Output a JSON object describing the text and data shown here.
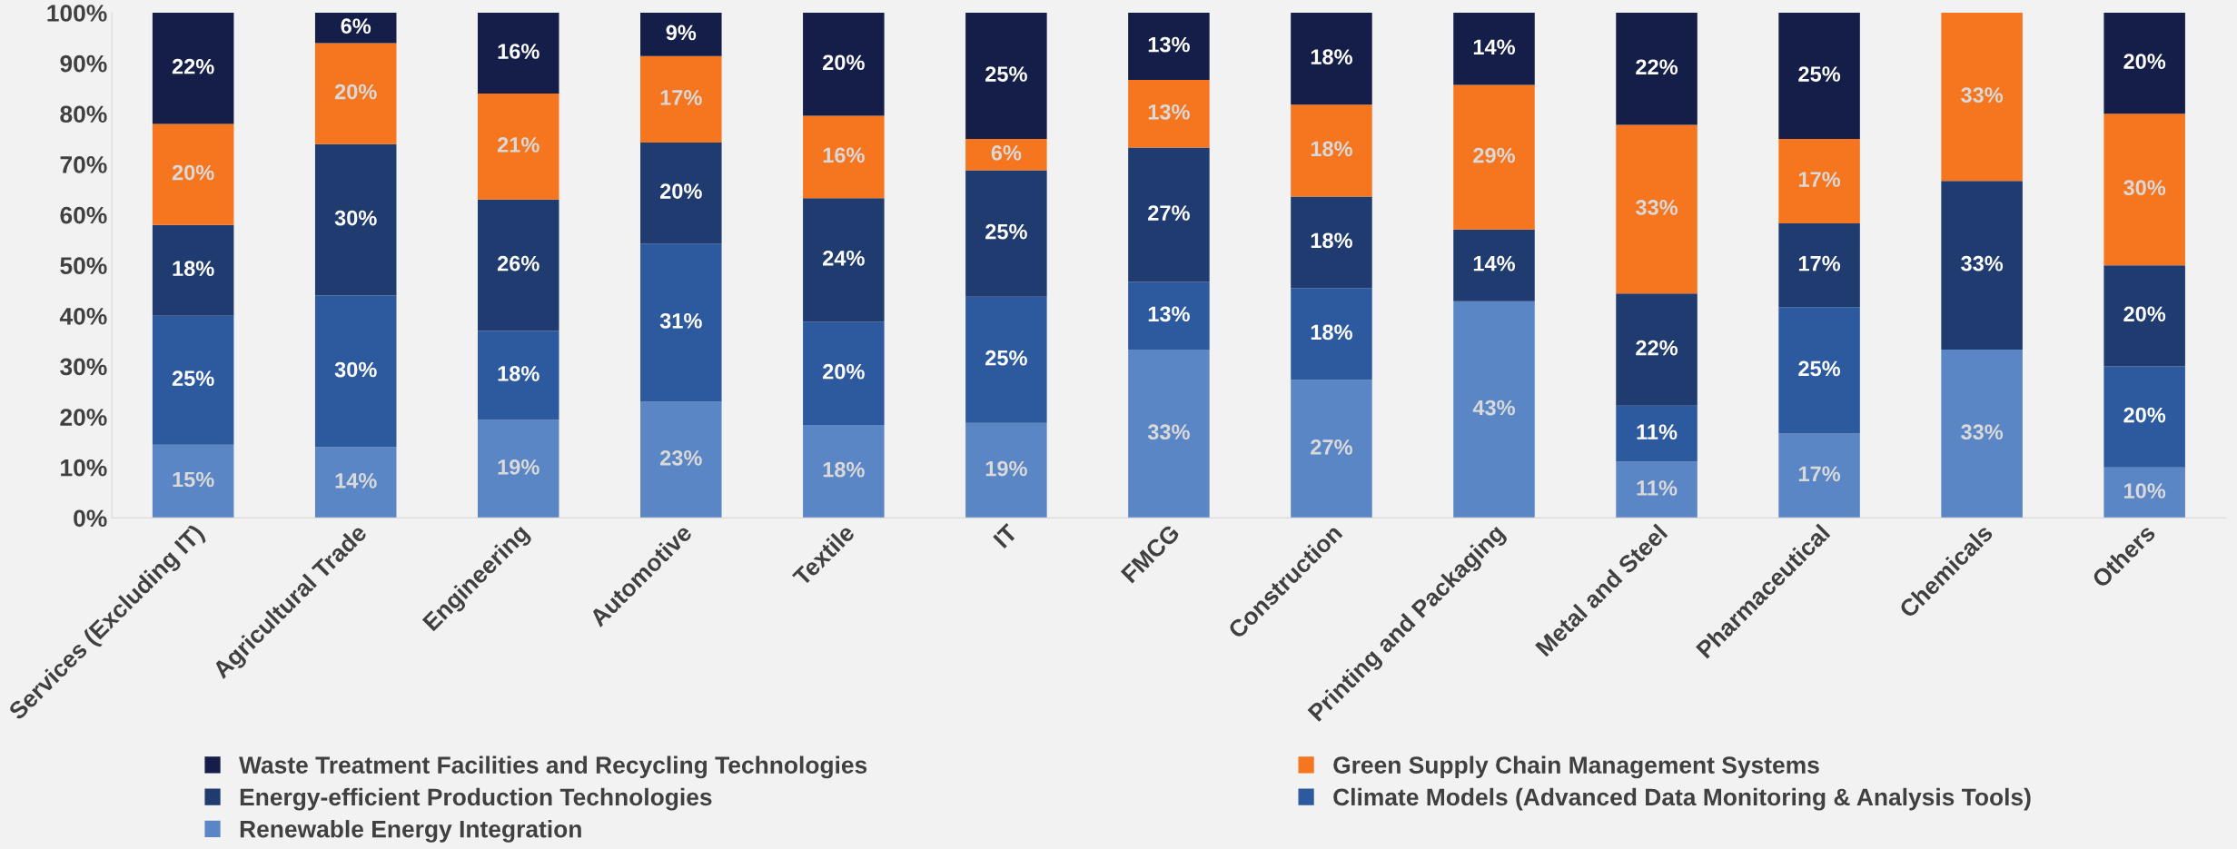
{
  "chart_data": {
    "type": "bar",
    "stacked": true,
    "categories": [
      "Services (Excluding IT)",
      "Agricultural Trade",
      "Engineering",
      "Automotive",
      "Textile",
      "IT",
      "FMCG",
      "Construction",
      "Printing and Packaging",
      "Metal and Steel",
      "Pharmaceutical",
      "Chemicals",
      "Others"
    ],
    "series": [
      {
        "name": "Renewable Energy Integration",
        "color": "#5b86c6",
        "values": [
          14.5,
          14,
          19.4,
          23,
          18.4,
          18.8,
          33.3,
          27.3,
          42.9,
          11.1,
          16.7,
          33.3,
          10
        ],
        "value_labels": [
          "15%",
          "14%",
          "19%",
          "23%",
          "18%",
          "19%",
          "33%",
          "27%",
          "43%",
          "11%",
          "17%",
          "33%",
          "10%"
        ]
      },
      {
        "name": "Climate Models (Advanced Data Monitoring & Analysis Tools)",
        "color": "#2d5a9f",
        "values": [
          25.5,
          30,
          17.6,
          31.3,
          20.4,
          25,
          13.4,
          18.2,
          0,
          11.1,
          25,
          0,
          20
        ],
        "value_labels": [
          "25%",
          "30%",
          "18%",
          "31%",
          "20%",
          "25%",
          "13%",
          "18%",
          null,
          "11%",
          "25%",
          null,
          "20%"
        ]
      },
      {
        "name": "Energy-efficient Production Technologies",
        "color": "#1f3b70",
        "values": [
          18,
          30,
          26,
          20,
          24.5,
          25,
          26.6,
          18.1,
          14.2,
          22.2,
          16.6,
          33.4,
          20
        ],
        "value_labels": [
          "18%",
          "30%",
          "26%",
          "20%",
          "24%",
          "25%",
          "27%",
          "18%",
          "14%",
          "22%",
          "17%",
          "33%",
          "20%"
        ]
      },
      {
        "name": "Green Supply Chain Management Systems",
        "color": "#f5761f",
        "values": [
          20,
          20,
          21,
          17.1,
          16.3,
          6.2,
          13.4,
          18.2,
          28.6,
          33.4,
          16.7,
          33.3,
          30
        ],
        "value_labels": [
          "20%",
          "20%",
          "21%",
          "17%",
          "16%",
          "6%",
          "13%",
          "18%",
          "29%",
          "33%",
          "17%",
          "33%",
          "30%"
        ]
      },
      {
        "name": "Waste Treatment Facilities and Recycling Technologies",
        "color": "#141e48",
        "values": [
          22,
          6,
          16,
          8.6,
          20.4,
          25,
          13.3,
          18.2,
          14.3,
          22.2,
          25,
          0,
          20
        ],
        "value_labels": [
          "22%",
          "6%",
          "16%",
          "9%",
          "20%",
          "25%",
          "13%",
          "18%",
          "14%",
          "22%",
          "25%",
          null,
          "20%"
        ]
      }
    ],
    "ylim": [
      0,
      100
    ],
    "yticks": [
      {
        "value": 0,
        "label": "0%"
      },
      {
        "value": 10,
        "label": "10%"
      },
      {
        "value": 20,
        "label": "20%"
      },
      {
        "value": 30,
        "label": "30%"
      },
      {
        "value": 40,
        "label": "40%"
      },
      {
        "value": 50,
        "label": "50%"
      },
      {
        "value": 60,
        "label": "60%"
      },
      {
        "value": 70,
        "label": "70%"
      },
      {
        "value": 80,
        "label": "80%"
      },
      {
        "value": 90,
        "label": "90%"
      },
      {
        "value": 100,
        "label": "100%"
      }
    ],
    "grid": false,
    "legend": "bottom"
  }
}
